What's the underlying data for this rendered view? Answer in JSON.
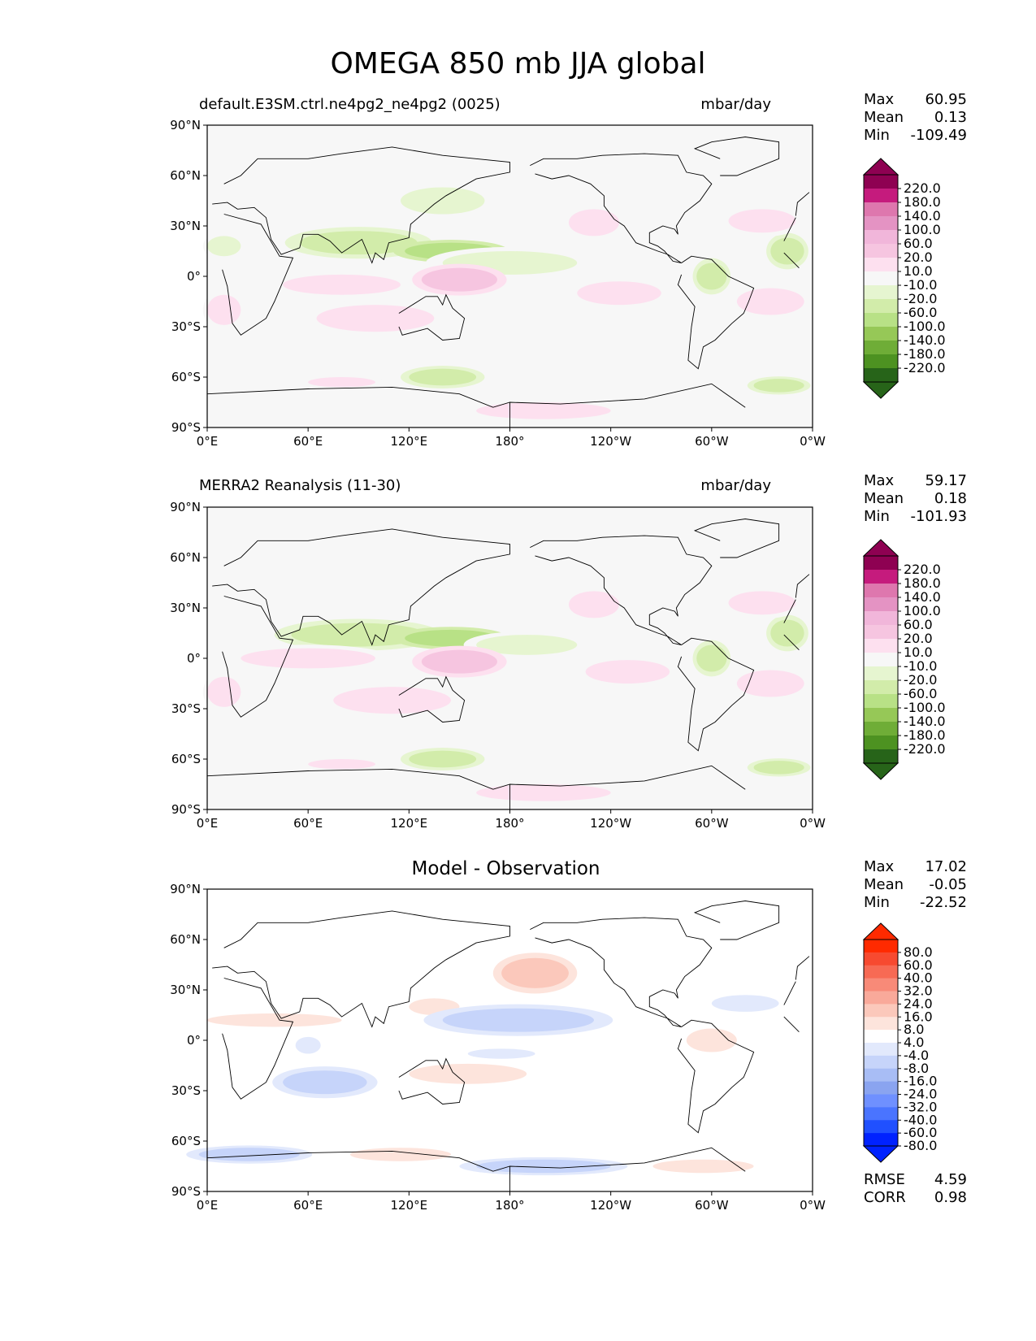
{
  "title": "OMEGA 850 mb JJA global",
  "colors": {
    "test_ref_scale": [
      "#276419",
      "#4d9221",
      "#6fad37",
      "#96c857",
      "#b8e186",
      "#d2ecaa",
      "#e6f5d0",
      "#f7f7f7",
      "#fde0ef",
      "#f6c5e0",
      "#f1b6da",
      "#e493c3",
      "#de77ae",
      "#c51b7d",
      "#8e0152"
    ],
    "diff_scale": [
      "#0022ff",
      "#2050ff",
      "#4a74ff",
      "#6f90ff",
      "#8aa4f0",
      "#a8bdf5",
      "#c6d4fa",
      "#e2e9fc",
      "#ffffff",
      "#fde4dc",
      "#fbc8bb",
      "#f9a99a",
      "#f88a78",
      "#f76a54",
      "#f74a30",
      "#ff2a00"
    ],
    "land_outline": "#000000"
  },
  "chart_data": [
    {
      "type": "heatmap",
      "panel_label": "default.E3SM.ctrl.ne4pg2_ne4pg2 (0025)",
      "units": "mbar/day",
      "stats": {
        "max_label": "Max",
        "max": "60.95",
        "mean_label": "Mean",
        "mean": "0.13",
        "min_label": "Min",
        "min": "-109.49"
      },
      "colorbar_ticks": [
        "220.0",
        "180.0",
        "140.0",
        "100.0",
        "60.0",
        "20.0",
        "10.0",
        "-10.0",
        "-20.0",
        "-60.0",
        "-100.0",
        "-140.0",
        "-180.0",
        "-220.0"
      ],
      "xticks": [
        "0°E",
        "60°E",
        "120°E",
        "180°",
        "120°W",
        "60°W",
        "0°W"
      ],
      "yticks": [
        "90°N",
        "60°N",
        "30°N",
        "0°",
        "30°S",
        "60°S",
        "90°S"
      ],
      "xlim": [
        0,
        360
      ],
      "ylim": [
        -90,
        90
      ],
      "regions": [
        {
          "lon": 90,
          "lat": 20,
          "w": 70,
          "h": 14,
          "level": -2
        },
        {
          "lon": 145,
          "lat": 15,
          "w": 55,
          "h": 10,
          "level": -3
        },
        {
          "lon": 180,
          "lat": 8,
          "w": 80,
          "h": 14,
          "level": -1
        },
        {
          "lon": 140,
          "lat": 45,
          "w": 50,
          "h": 16,
          "level": -1
        },
        {
          "lon": 10,
          "lat": 18,
          "w": 20,
          "h": 12,
          "level": -1
        },
        {
          "lon": 300,
          "lat": 0,
          "w": 18,
          "h": 16,
          "level": -2
        },
        {
          "lon": 345,
          "lat": 15,
          "w": 20,
          "h": 16,
          "level": -2
        },
        {
          "lon": 140,
          "lat": -60,
          "w": 40,
          "h": 10,
          "level": -2
        },
        {
          "lon": 340,
          "lat": -65,
          "w": 30,
          "h": 8,
          "level": -2
        },
        {
          "lon": 80,
          "lat": -5,
          "w": 70,
          "h": 12,
          "level": 1
        },
        {
          "lon": 150,
          "lat": -2,
          "w": 45,
          "h": 14,
          "level": 2
        },
        {
          "lon": 100,
          "lat": -25,
          "w": 70,
          "h": 16,
          "level": 1
        },
        {
          "lon": 245,
          "lat": -10,
          "w": 50,
          "h": 14,
          "level": 1
        },
        {
          "lon": 335,
          "lat": -15,
          "w": 40,
          "h": 16,
          "level": 1
        },
        {
          "lon": 10,
          "lat": -20,
          "w": 20,
          "h": 18,
          "level": 1
        },
        {
          "lon": 230,
          "lat": 32,
          "w": 30,
          "h": 16,
          "level": 1
        },
        {
          "lon": 330,
          "lat": 33,
          "w": 40,
          "h": 14,
          "level": 1
        },
        {
          "lon": 200,
          "lat": -80,
          "w": 80,
          "h": 10,
          "level": 1
        },
        {
          "lon": 80,
          "lat": -63,
          "w": 40,
          "h": 6,
          "level": 1
        }
      ]
    },
    {
      "type": "heatmap",
      "panel_label": "MERRA2 Reanalysis (11-30)",
      "units": "mbar/day",
      "stats": {
        "max_label": "Max",
        "max": "59.17",
        "mean_label": "Mean",
        "mean": "0.18",
        "min_label": "Min",
        "min": "-101.93"
      },
      "colorbar_ticks": [
        "220.0",
        "180.0",
        "140.0",
        "100.0",
        "60.0",
        "20.0",
        "10.0",
        "-10.0",
        "-20.0",
        "-60.0",
        "-100.0",
        "-140.0",
        "-180.0",
        "-220.0"
      ],
      "xticks": [
        "0°E",
        "60°E",
        "120°E",
        "180°",
        "120°W",
        "60°W",
        "0°W"
      ],
      "yticks": [
        "90°N",
        "60°N",
        "30°N",
        "0°",
        "30°S",
        "60°S",
        "90°S"
      ],
      "xlim": [
        0,
        360
      ],
      "ylim": [
        -90,
        90
      ],
      "regions": [
        {
          "lon": 90,
          "lat": 14,
          "w": 80,
          "h": 14,
          "level": -2
        },
        {
          "lon": 145,
          "lat": 12,
          "w": 55,
          "h": 10,
          "level": -3
        },
        {
          "lon": 190,
          "lat": 8,
          "w": 60,
          "h": 12,
          "level": -1
        },
        {
          "lon": 300,
          "lat": 0,
          "w": 18,
          "h": 16,
          "level": -2
        },
        {
          "lon": 345,
          "lat": 15,
          "w": 20,
          "h": 16,
          "level": -2
        },
        {
          "lon": 140,
          "lat": -60,
          "w": 40,
          "h": 10,
          "level": -2
        },
        {
          "lon": 340,
          "lat": -65,
          "w": 30,
          "h": 8,
          "level": -2
        },
        {
          "lon": 60,
          "lat": 0,
          "w": 80,
          "h": 12,
          "level": 1
        },
        {
          "lon": 150,
          "lat": -2,
          "w": 45,
          "h": 14,
          "level": 2
        },
        {
          "lon": 110,
          "lat": -25,
          "w": 70,
          "h": 16,
          "level": 1
        },
        {
          "lon": 250,
          "lat": -8,
          "w": 50,
          "h": 14,
          "level": 1
        },
        {
          "lon": 335,
          "lat": -15,
          "w": 40,
          "h": 16,
          "level": 1
        },
        {
          "lon": 10,
          "lat": -20,
          "w": 20,
          "h": 18,
          "level": 1
        },
        {
          "lon": 230,
          "lat": 32,
          "w": 30,
          "h": 16,
          "level": 1
        },
        {
          "lon": 330,
          "lat": 33,
          "w": 40,
          "h": 14,
          "level": 1
        },
        {
          "lon": 200,
          "lat": -80,
          "w": 80,
          "h": 10,
          "level": 1
        },
        {
          "lon": 80,
          "lat": -63,
          "w": 40,
          "h": 6,
          "level": 1
        }
      ]
    },
    {
      "type": "heatmap",
      "panel_label": "Model - Observation",
      "units": "",
      "stats": {
        "max_label": "Max",
        "max": "17.02",
        "mean_label": "Mean",
        "mean": "-0.05",
        "min_label": "Min",
        "min": "-22.52",
        "rmse_label": "RMSE",
        "rmse": "4.59",
        "corr_label": "CORR",
        "corr": "0.98"
      },
      "colorbar_ticks": [
        "80.0",
        "60.0",
        "40.0",
        "32.0",
        "24.0",
        "16.0",
        "8.0",
        "4.0",
        "-4.0",
        "-8.0",
        "-16.0",
        "-24.0",
        "-32.0",
        "-40.0",
        "-60.0",
        "-80.0"
      ],
      "xticks": [
        "0°E",
        "60°E",
        "120°E",
        "180°",
        "120°W",
        "60°W",
        "0°W"
      ],
      "yticks": [
        "90°N",
        "60°N",
        "30°N",
        "0°",
        "30°S",
        "60°S",
        "90°S"
      ],
      "xlim": [
        0,
        360
      ],
      "ylim": [
        -90,
        90
      ],
      "regions": [
        {
          "lon": 40,
          "lat": 12,
          "w": 80,
          "h": 8,
          "level": 1
        },
        {
          "lon": 135,
          "lat": 20,
          "w": 30,
          "h": 10,
          "level": 1
        },
        {
          "lon": 195,
          "lat": 40,
          "w": 40,
          "h": 18,
          "level": 2
        },
        {
          "lon": 185,
          "lat": 12,
          "w": 90,
          "h": 14,
          "level": -2
        },
        {
          "lon": 320,
          "lat": 22,
          "w": 40,
          "h": 10,
          "level": -1
        },
        {
          "lon": 300,
          "lat": 0,
          "w": 30,
          "h": 14,
          "level": 1
        },
        {
          "lon": 60,
          "lat": -3,
          "w": 15,
          "h": 10,
          "level": -1
        },
        {
          "lon": 70,
          "lat": -25,
          "w": 50,
          "h": 14,
          "level": -2
        },
        {
          "lon": 155,
          "lat": -20,
          "w": 70,
          "h": 12,
          "level": 1
        },
        {
          "lon": 175,
          "lat": -8,
          "w": 40,
          "h": 6,
          "level": -1
        },
        {
          "lon": 25,
          "lat": -68,
          "w": 60,
          "h": 8,
          "level": -2
        },
        {
          "lon": 115,
          "lat": -68,
          "w": 60,
          "h": 8,
          "level": 1
        },
        {
          "lon": 200,
          "lat": -75,
          "w": 80,
          "h": 8,
          "level": -2
        },
        {
          "lon": 295,
          "lat": -75,
          "w": 60,
          "h": 8,
          "level": 1
        }
      ]
    }
  ],
  "continents": [
    {
      "name": "africa",
      "pts": [
        [
          -17,
          21
        ],
        [
          -10,
          35
        ],
        [
          10,
          37
        ],
        [
          32,
          31
        ],
        [
          43,
          12
        ],
        [
          51,
          11
        ],
        [
          40,
          -15
        ],
        [
          35,
          -25
        ],
        [
          20,
          -35
        ],
        [
          15,
          -28
        ],
        [
          12,
          -6
        ],
        [
          9,
          4
        ],
        [
          -8,
          5
        ],
        [
          -17,
          14
        ]
      ]
    },
    {
      "name": "eurasia",
      "pts": [
        [
          -10,
          36
        ],
        [
          -9,
          44
        ],
        [
          -2,
          50
        ],
        [
          10,
          55
        ],
        [
          20,
          60
        ],
        [
          30,
          70
        ],
        [
          60,
          70
        ],
        [
          80,
          73
        ],
        [
          110,
          77
        ],
        [
          140,
          72
        ],
        [
          180,
          68
        ],
        [
          180,
          62
        ],
        [
          160,
          58
        ],
        [
          142,
          48
        ],
        [
          135,
          43
        ],
        [
          121,
          31
        ],
        [
          120,
          23
        ],
        [
          108,
          20
        ],
        [
          105,
          10
        ],
        [
          100,
          14
        ],
        [
          98,
          8
        ],
        [
          92,
          22
        ],
        [
          80,
          14
        ],
        [
          73,
          21
        ],
        [
          66,
          25
        ],
        [
          57,
          25
        ],
        [
          55,
          17
        ],
        [
          44,
          13
        ],
        [
          38,
          22
        ],
        [
          35,
          35
        ],
        [
          28,
          41
        ],
        [
          18,
          40
        ],
        [
          12,
          44
        ],
        [
          3,
          43
        ]
      ]
    },
    {
      "name": "north-america",
      "pts": [
        [
          -168,
          66
        ],
        [
          -160,
          70
        ],
        [
          -140,
          70
        ],
        [
          -125,
          72
        ],
        [
          -100,
          73
        ],
        [
          -80,
          72
        ],
        [
          -75,
          62
        ],
        [
          -65,
          60
        ],
        [
          -60,
          55
        ],
        [
          -67,
          45
        ],
        [
          -76,
          38
        ],
        [
          -81,
          30
        ],
        [
          -80,
          25
        ],
        [
          -82,
          28
        ],
        [
          -89,
          30
        ],
        [
          -97,
          26
        ],
        [
          -97,
          20
        ],
        [
          -92,
          18
        ],
        [
          -88,
          15
        ],
        [
          -83,
          9
        ],
        [
          -78,
          8
        ],
        [
          -86,
          13
        ],
        [
          -92,
          15
        ],
        [
          -105,
          20
        ],
        [
          -112,
          30
        ],
        [
          -118,
          34
        ],
        [
          -124,
          42
        ],
        [
          -124,
          48
        ],
        [
          -132,
          55
        ],
        [
          -145,
          60
        ],
        [
          -155,
          58
        ],
        [
          -165,
          61
        ]
      ]
    },
    {
      "name": "south-america",
      "pts": [
        [
          -78,
          8
        ],
        [
          -72,
          12
        ],
        [
          -60,
          10
        ],
        [
          -50,
          0
        ],
        [
          -35,
          -7
        ],
        [
          -38,
          -15
        ],
        [
          -41,
          -22
        ],
        [
          -48,
          -28
        ],
        [
          -58,
          -38
        ],
        [
          -65,
          -42
        ],
        [
          -68,
          -55
        ],
        [
          -74,
          -50
        ],
        [
          -72,
          -30
        ],
        [
          -70,
          -18
        ],
        [
          -80,
          -5
        ],
        [
          -78,
          1
        ]
      ]
    },
    {
      "name": "australia",
      "pts": [
        [
          114,
          -22
        ],
        [
          122,
          -17
        ],
        [
          130,
          -12
        ],
        [
          137,
          -12
        ],
        [
          140,
          -17
        ],
        [
          142,
          -11
        ],
        [
          146,
          -19
        ],
        [
          153,
          -25
        ],
        [
          150,
          -37
        ],
        [
          140,
          -38
        ],
        [
          131,
          -31
        ],
        [
          116,
          -35
        ],
        [
          114,
          -30
        ]
      ]
    },
    {
      "name": "greenland",
      "pts": [
        [
          -55,
          60
        ],
        [
          -45,
          60
        ],
        [
          -20,
          70
        ],
        [
          -20,
          80
        ],
        [
          -40,
          83
        ],
        [
          -60,
          80
        ],
        [
          -70,
          76
        ],
        [
          -55,
          70
        ]
      ]
    },
    {
      "name": "antarctica",
      "pts": [
        [
          -180,
          -75
        ],
        [
          -150,
          -76
        ],
        [
          -100,
          -73
        ],
        [
          -60,
          -64
        ],
        [
          -40,
          -78
        ],
        [
          0,
          -70
        ],
        [
          60,
          -67
        ],
        [
          110,
          -66
        ],
        [
          150,
          -70
        ],
        [
          170,
          -78
        ],
        [
          180,
          -75
        ],
        [
          180,
          -90
        ],
        [
          -180,
          -90
        ]
      ]
    }
  ]
}
